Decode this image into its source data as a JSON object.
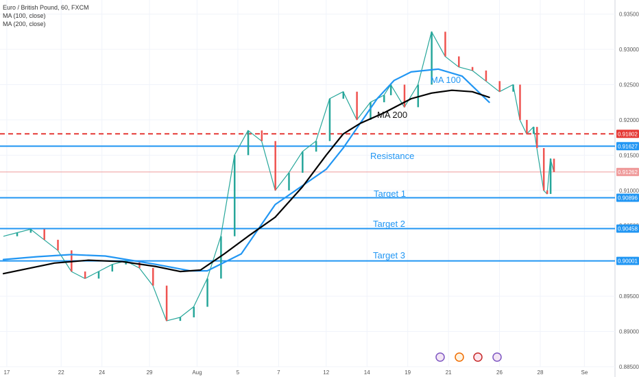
{
  "chart_data": {
    "type": "line",
    "legend": {
      "symbol": "Euro / British Pound, 60, FXCM",
      "ma100": "MA (100, close)",
      "ma200": "MA (200, close)"
    },
    "x_ticks": [
      "17",
      "22",
      "24",
      "29",
      "Aug",
      "5",
      "7",
      "12",
      "14",
      "19",
      "21",
      "26",
      "28",
      "Se"
    ],
    "y_ticks": [
      "0.93500",
      "0.93000",
      "0.92500",
      "0.92000",
      "0.91500",
      "0.91000",
      "0.90500",
      "0.90000",
      "0.89500",
      "0.89000",
      "0.88500"
    ],
    "ylim": [
      0.885,
      0.937
    ],
    "levels": [
      {
        "name": "",
        "label": "0.91802",
        "value": 0.91802,
        "style": "dashed",
        "color": "#e53935"
      },
      {
        "name": "Resistance",
        "label": "0.91627",
        "value": 0.91627,
        "style": "solid",
        "color": "#2196f3"
      },
      {
        "name": "Target 1",
        "label": "0.90896",
        "value": 0.90896,
        "style": "solid",
        "color": "#2196f3"
      },
      {
        "name": "Target 2",
        "label": "0.90458",
        "value": 0.90458,
        "style": "solid",
        "color": "#2196f3"
      },
      {
        "name": "Target 3",
        "label": "0.90001",
        "value": 0.90001,
        "style": "solid",
        "color": "#2196f3"
      }
    ],
    "current_price": {
      "label": "0.91262",
      "value": 0.91262,
      "color": "#ef9a9a"
    },
    "series": [
      {
        "name": "MA 100",
        "color": "#2196f3",
        "x": [
          0,
          10,
          20,
          30,
          45,
          55,
          60,
          70,
          80,
          95,
          100,
          105,
          110,
          115,
          120,
          128,
          135,
          143
        ],
        "values": [
          0.9002,
          0.9006,
          0.9009,
          0.9007,
          0.8995,
          0.8986,
          0.8986,
          0.901,
          0.908,
          0.913,
          0.916,
          0.9195,
          0.923,
          0.9256,
          0.9268,
          0.9272,
          0.9262,
          0.9225
        ]
      },
      {
        "name": "MA 200",
        "color": "#000000",
        "x": [
          0,
          15,
          25,
          35,
          45,
          52,
          58,
          65,
          72,
          80,
          88,
          95,
          100,
          105,
          112,
          120,
          126,
          132,
          138,
          143
        ],
        "values": [
          0.8982,
          0.8997,
          0.9001,
          0.8999,
          0.8992,
          0.8985,
          0.8987,
          0.901,
          0.9035,
          0.9062,
          0.9105,
          0.915,
          0.918,
          0.9195,
          0.921,
          0.923,
          0.9238,
          0.9242,
          0.924,
          0.9232
        ]
      },
      {
        "name": "Price",
        "color": "#26a69a",
        "x": [
          0,
          4,
          8,
          12,
          16,
          20,
          24,
          28,
          32,
          36,
          40,
          44,
          48,
          52,
          56,
          60,
          64,
          68,
          72,
          76,
          80,
          84,
          88,
          92,
          96,
          100,
          104,
          108,
          112,
          114,
          118,
          122,
          126,
          130,
          134,
          138,
          142,
          146,
          150,
          152,
          154,
          156,
          157,
          159,
          160,
          161,
          162
        ],
        "values": [
          0.9035,
          0.904,
          0.9045,
          0.903,
          0.9015,
          0.8985,
          0.8975,
          0.8985,
          0.8995,
          0.9,
          0.899,
          0.8965,
          0.8915,
          0.892,
          0.8935,
          0.8975,
          0.9035,
          0.915,
          0.9185,
          0.917,
          0.91,
          0.9125,
          0.9155,
          0.917,
          0.923,
          0.924,
          0.92,
          0.9225,
          0.9235,
          0.925,
          0.9218,
          0.925,
          0.9325,
          0.929,
          0.9275,
          0.927,
          0.9255,
          0.924,
          0.925,
          0.92,
          0.918,
          0.919,
          0.916,
          0.91,
          0.9095,
          0.9145,
          0.9126
        ]
      }
    ]
  }
}
